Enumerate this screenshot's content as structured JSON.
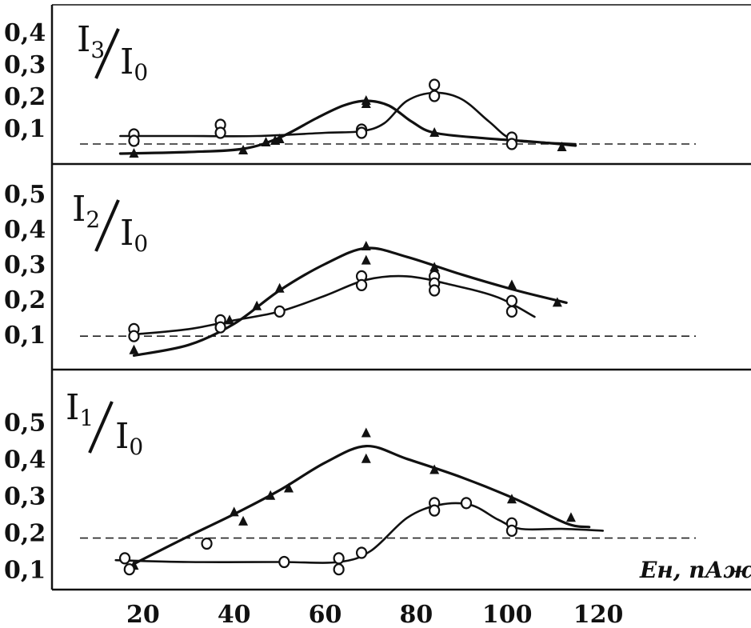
{
  "chart_data": [
    {
      "type": "scatter",
      "panel": "top",
      "ylabel": "I3/I0",
      "ylabel_num": "I",
      "ylabel_num_sub": "3",
      "ylabel_den": "I",
      "ylabel_den_sub": "0",
      "ylim": [
        0.0,
        0.45
      ],
      "ytick_labels": [
        "0,1",
        "0,2",
        "0,3",
        "0,4"
      ],
      "ytick_values": [
        0.1,
        0.2,
        0.3,
        0.4
      ],
      "baseline": 0.05,
      "series": [
        {
          "marker": "triangle",
          "points": [
            [
              18,
              0.02
            ],
            [
              42,
              0.03
            ],
            [
              47,
              0.055
            ],
            [
              49,
              0.06
            ],
            [
              50,
              0.065
            ],
            [
              69,
              0.185
            ],
            [
              69,
              0.175
            ],
            [
              84,
              0.085
            ],
            [
              101,
              0.065
            ],
            [
              112,
              0.04
            ]
          ],
          "curve": [
            [
              15,
              0.02
            ],
            [
              30,
              0.025
            ],
            [
              42,
              0.035
            ],
            [
              50,
              0.07
            ],
            [
              58,
              0.13
            ],
            [
              64,
              0.17
            ],
            [
              69,
              0.185
            ],
            [
              74,
              0.17
            ],
            [
              79,
              0.12
            ],
            [
              84,
              0.085
            ],
            [
              95,
              0.068
            ],
            [
              105,
              0.058
            ],
            [
              115,
              0.045
            ]
          ]
        },
        {
          "marker": "circle",
          "points": [
            [
              18,
              0.08
            ],
            [
              18,
              0.06
            ],
            [
              37,
              0.11
            ],
            [
              37,
              0.085
            ],
            [
              68,
              0.095
            ],
            [
              68,
              0.085
            ],
            [
              84,
              0.235
            ],
            [
              84,
              0.2
            ],
            [
              101,
              0.07
            ],
            [
              101,
              0.05
            ]
          ],
          "curve": [
            [
              15,
              0.075
            ],
            [
              30,
              0.075
            ],
            [
              45,
              0.075
            ],
            [
              60,
              0.085
            ],
            [
              68,
              0.09
            ],
            [
              73,
              0.115
            ],
            [
              78,
              0.185
            ],
            [
              84,
              0.21
            ],
            [
              90,
              0.19
            ],
            [
              96,
              0.12
            ],
            [
              101,
              0.065
            ],
            [
              108,
              0.055
            ],
            [
              115,
              0.05
            ]
          ]
        }
      ]
    },
    {
      "type": "scatter",
      "panel": "middle",
      "ylabel": "I2/I0",
      "ylabel_num": "I",
      "ylabel_num_sub": "2",
      "ylabel_den": "I",
      "ylabel_den_sub": "0",
      "ylim": [
        0.0,
        0.58
      ],
      "ytick_labels": [
        "0,1",
        "0,2",
        "0,3",
        "0,4",
        "0,5"
      ],
      "ytick_values": [
        0.1,
        0.2,
        0.3,
        0.4,
        0.5
      ],
      "baseline": 0.095,
      "series": [
        {
          "marker": "triangle",
          "points": [
            [
              18,
              0.055
            ],
            [
              39,
              0.14
            ],
            [
              45,
              0.18
            ],
            [
              50,
              0.23
            ],
            [
              69,
              0.35
            ],
            [
              69,
              0.31
            ],
            [
              84,
              0.29
            ],
            [
              101,
              0.24
            ],
            [
              111,
              0.19
            ]
          ],
          "curve": [
            [
              18,
              0.04
            ],
            [
              30,
              0.07
            ],
            [
              40,
              0.13
            ],
            [
              50,
              0.225
            ],
            [
              60,
              0.3
            ],
            [
              69,
              0.345
            ],
            [
              78,
              0.32
            ],
            [
              90,
              0.27
            ],
            [
              102,
              0.225
            ],
            [
              113,
              0.19
            ]
          ]
        },
        {
          "marker": "circle",
          "points": [
            [
              18,
              0.115
            ],
            [
              18,
              0.095
            ],
            [
              37,
              0.14
            ],
            [
              37,
              0.12
            ],
            [
              50,
              0.165
            ],
            [
              68,
              0.265
            ],
            [
              68,
              0.24
            ],
            [
              84,
              0.265
            ],
            [
              84,
              0.245
            ],
            [
              84,
              0.225
            ],
            [
              101,
              0.195
            ],
            [
              101,
              0.165
            ]
          ],
          "curve": [
            [
              18,
              0.1
            ],
            [
              30,
              0.115
            ],
            [
              40,
              0.14
            ],
            [
              50,
              0.165
            ],
            [
              60,
              0.21
            ],
            [
              69,
              0.255
            ],
            [
              78,
              0.265
            ],
            [
              88,
              0.24
            ],
            [
              98,
              0.205
            ],
            [
              106,
              0.15
            ]
          ]
        }
      ]
    },
    {
      "type": "scatter",
      "panel": "bottom",
      "ylabel": "I1/I0",
      "ylabel_num": "I",
      "ylabel_num_sub": "1",
      "ylabel_den": "I",
      "ylabel_den_sub": "0",
      "xlabel": "Eн, пАж",
      "xlim": [
        0,
        130
      ],
      "xtick_labels": [
        "20",
        "40",
        "60",
        "80",
        "100",
        "120"
      ],
      "xtick_values": [
        20,
        40,
        60,
        80,
        100,
        120
      ],
      "ylim": [
        0.02,
        0.6
      ],
      "ytick_labels": [
        "0,1",
        "0,2",
        "0,3",
        "0,4",
        "0,5"
      ],
      "ytick_values": [
        0.1,
        0.2,
        0.3,
        0.4,
        0.5
      ],
      "baseline": 0.185,
      "series": [
        {
          "marker": "triangle",
          "points": [
            [
              18,
              0.11
            ],
            [
              40,
              0.255
            ],
            [
              42,
              0.23
            ],
            [
              48,
              0.3
            ],
            [
              52,
              0.32
            ],
            [
              69,
              0.47
            ],
            [
              69,
              0.4
            ],
            [
              84,
              0.37
            ],
            [
              101,
              0.29
            ],
            [
              114,
              0.24
            ]
          ],
          "curve": [
            [
              18,
              0.115
            ],
            [
              30,
              0.19
            ],
            [
              40,
              0.25
            ],
            [
              50,
              0.315
            ],
            [
              60,
              0.39
            ],
            [
              69,
              0.435
            ],
            [
              78,
              0.4
            ],
            [
              90,
              0.35
            ],
            [
              102,
              0.29
            ],
            [
              113,
              0.225
            ],
            [
              118,
              0.215
            ]
          ]
        },
        {
          "marker": "circle",
          "points": [
            [
              16,
              0.13
            ],
            [
              17,
              0.1
            ],
            [
              34,
              0.17
            ],
            [
              51,
              0.12
            ],
            [
              63,
              0.13
            ],
            [
              63,
              0.1
            ],
            [
              68,
              0.145
            ],
            [
              84,
              0.28
            ],
            [
              84,
              0.26
            ],
            [
              91,
              0.28
            ],
            [
              101,
              0.225
            ],
            [
              101,
              0.205
            ]
          ],
          "curve": [
            [
              14,
              0.125
            ],
            [
              30,
              0.12
            ],
            [
              50,
              0.12
            ],
            [
              63,
              0.12
            ],
            [
              70,
              0.15
            ],
            [
              78,
              0.24
            ],
            [
              85,
              0.275
            ],
            [
              92,
              0.275
            ],
            [
              98,
              0.235
            ],
            [
              103,
              0.21
            ],
            [
              112,
              0.21
            ],
            [
              121,
              0.205
            ]
          ]
        }
      ]
    }
  ]
}
